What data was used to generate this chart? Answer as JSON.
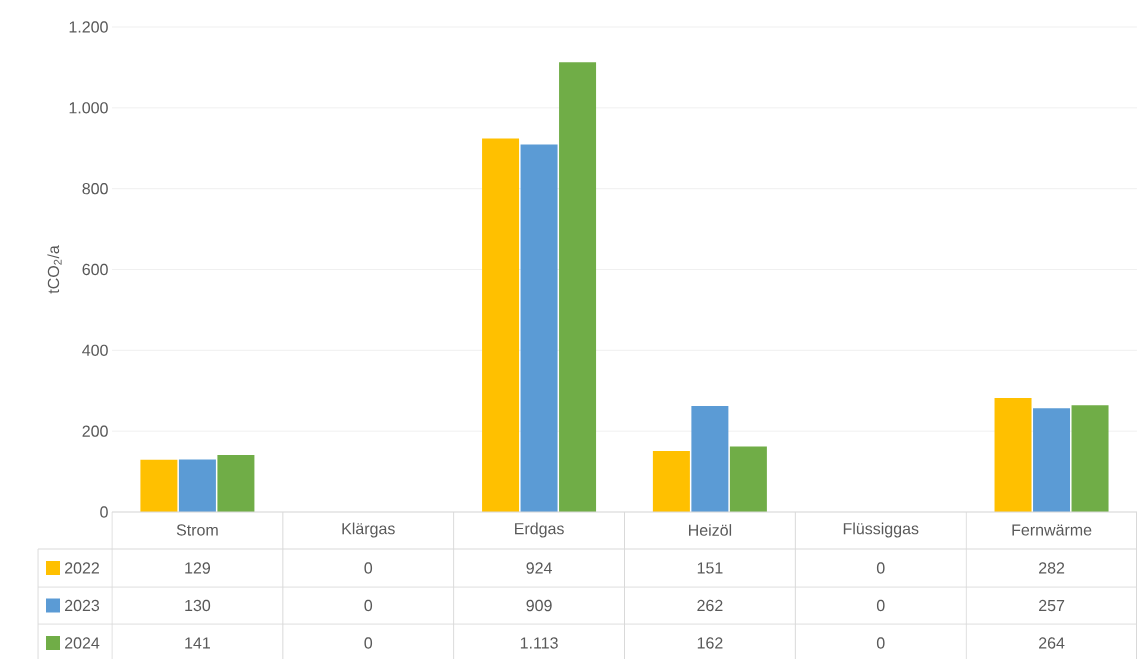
{
  "chart_data": {
    "type": "bar",
    "ylabel": "tCO$_{2}$/a",
    "categories": [
      "Strom",
      "Klärgas",
      "Erdgas",
      "Heizöl",
      "Flüssiggas",
      "Fernwärme"
    ],
    "series": [
      {
        "name": "2022",
        "color": "#ffc000",
        "values": [
          129,
          0,
          924,
          151,
          0,
          282
        ],
        "value_labels": [
          "129",
          "0",
          "924",
          "151",
          "0",
          "282"
        ]
      },
      {
        "name": "2023",
        "color": "#5b9bd5",
        "values": [
          130,
          0,
          909,
          262,
          0,
          257
        ],
        "value_labels": [
          "130",
          "0",
          "909",
          "262",
          "0",
          "257"
        ]
      },
      {
        "name": "2024",
        "color": "#70ad47",
        "values": [
          141,
          0,
          1113,
          162,
          0,
          264
        ],
        "value_labels": [
          "141",
          "0",
          "1.113",
          "162",
          "0",
          "264"
        ]
      }
    ],
    "ylim": [
      0,
      1200
    ],
    "yticks": [
      0,
      200,
      400,
      600,
      800,
      {
        "value": 1000,
        "label": "1.000"
      },
      {
        "value": 1200,
        "label": "1.200"
      }
    ],
    "grid": "y",
    "legend": "bottom"
  }
}
